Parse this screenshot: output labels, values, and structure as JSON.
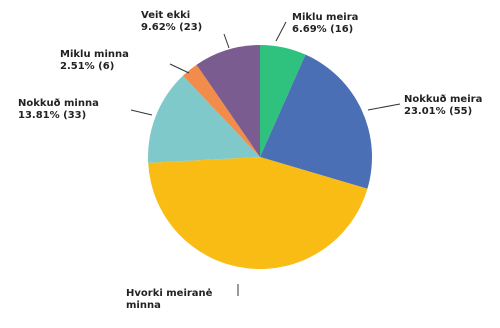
{
  "chart_data": {
    "type": "pie",
    "title": "",
    "slices": [
      {
        "label": "Miklu meira",
        "label_lines": [
          "Miklu meira"
        ],
        "value": 16,
        "percent": "6.69%",
        "value_text": "6.69% (16)",
        "color": "#2ec27e"
      },
      {
        "label": "Nokkuð meira",
        "label_lines": [
          "Nokkuð meira"
        ],
        "value": 55,
        "percent": "23.01%",
        "value_text": "23.01% (55)",
        "color": "#4a6fb5"
      },
      {
        "label": "Hvorki meiranė minna",
        "label_lines": [
          "Hvorki meiranė",
          "minna"
        ],
        "value": 107,
        "percent": "44.77%",
        "value_text": "",
        "color": "#f9bc15"
      },
      {
        "label": "Nokkuð minna",
        "label_lines": [
          "Nokkuð minna"
        ],
        "value": 33,
        "percent": "13.81%",
        "value_text": "13.81% (33)",
        "color": "#7fc9cb"
      },
      {
        "label": "Miklu minna",
        "label_lines": [
          "Miklu minna"
        ],
        "value": 6,
        "percent": "2.51%",
        "value_text": "2.51% (6)",
        "color": "#f28c4a"
      },
      {
        "label": "Veit ekki",
        "label_lines": [
          "Veit ekki"
        ],
        "value": 23,
        "percent": "9.62%",
        "value_text": "9.62% (23)",
        "color": "#7b5c91"
      }
    ]
  }
}
